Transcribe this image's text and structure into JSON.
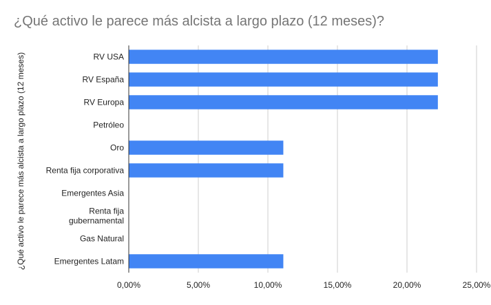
{
  "chart_data": {
    "type": "bar",
    "orientation": "horizontal",
    "title": "¿Qué activo le parece más alcista a largo plazo (12 meses)?",
    "ylabel": "¿Qué activo le parece más alcista a largo plazo (12 meses)",
    "xlabel": "",
    "categories": [
      "RV USA",
      "RV España",
      "RV Europa",
      "Petróleo",
      "Oro",
      "Renta fija corporativa",
      "Emergentes Asia",
      "Renta fija gubernamental",
      "Gas Natural",
      "Emergentes Latam"
    ],
    "category_lines": [
      [
        "RV USA"
      ],
      [
        "RV España"
      ],
      [
        "RV Europa"
      ],
      [
        "Petróleo"
      ],
      [
        "Oro"
      ],
      [
        "Renta fija corporativa"
      ],
      [
        "Emergentes Asia"
      ],
      [
        "Renta fija",
        "gubernamental"
      ],
      [
        "Gas Natural"
      ],
      [
        "Emergentes Latam"
      ]
    ],
    "values": [
      22.22,
      22.22,
      22.22,
      0,
      11.11,
      11.11,
      0,
      0,
      0,
      11.11
    ],
    "xlim": [
      0,
      25
    ],
    "xticks": [
      0,
      5,
      10,
      15,
      20,
      25
    ],
    "xtick_labels": [
      "0,00%",
      "5,00%",
      "10,00%",
      "15,00%",
      "20,00%",
      "25,00%"
    ],
    "grid": true,
    "legend": "none",
    "colors": {
      "bar": "#4285f4",
      "grid": "#cccccc",
      "axis": "#333333",
      "title": "#757575",
      "text": "#222222"
    }
  }
}
